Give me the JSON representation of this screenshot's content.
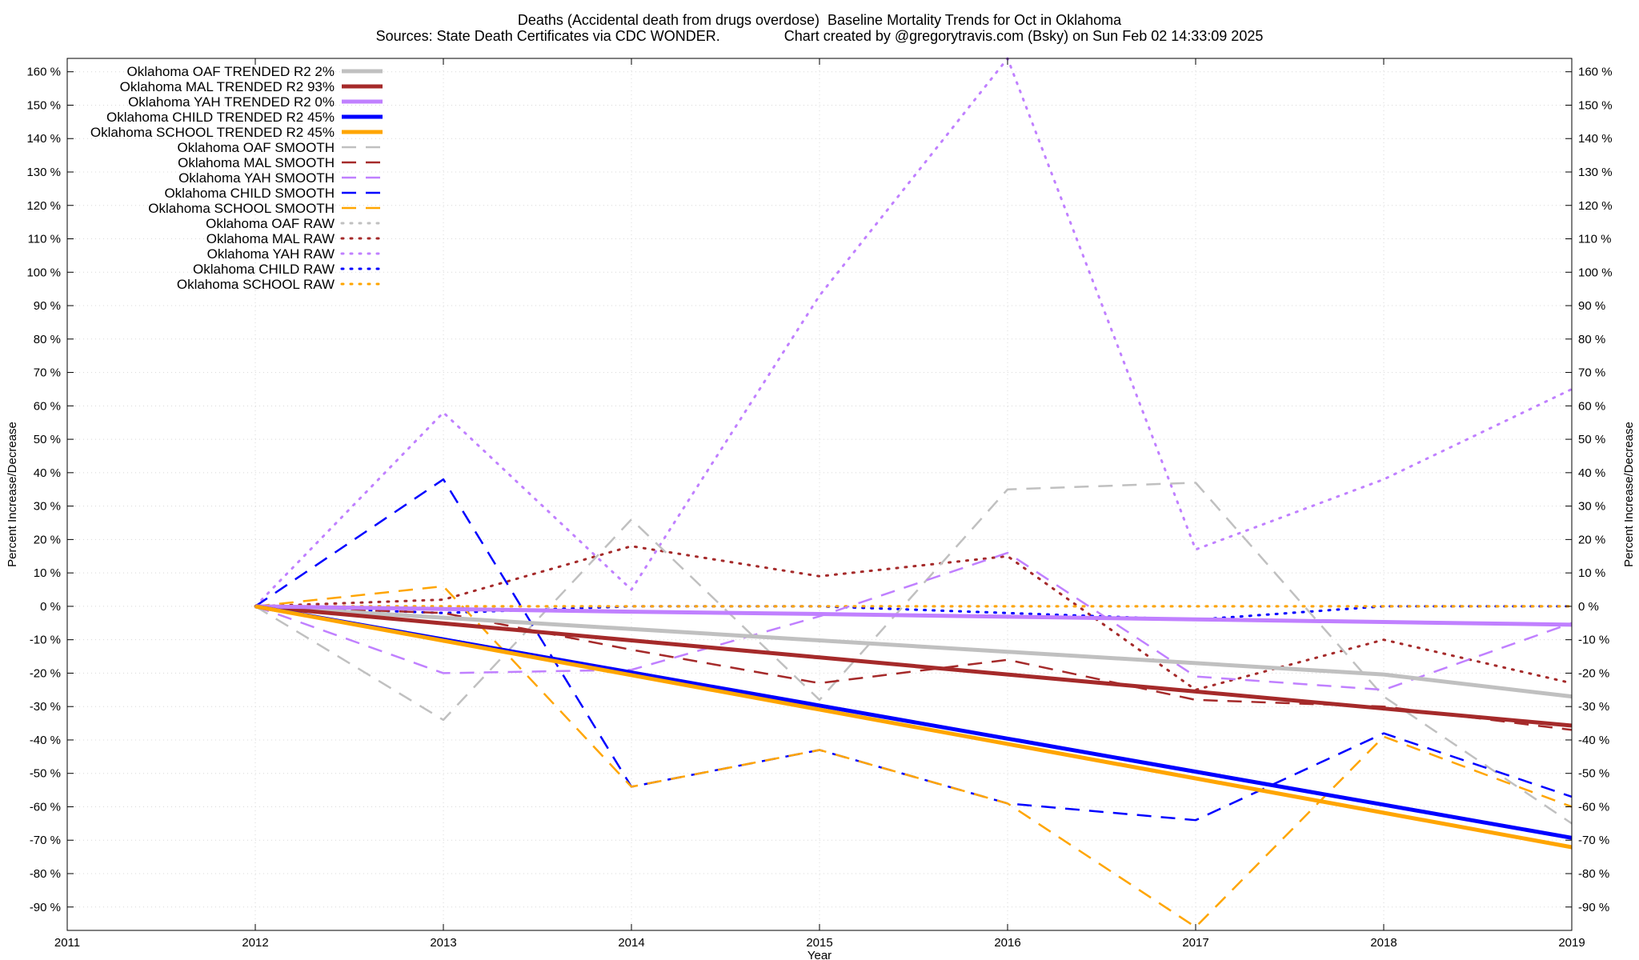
{
  "header": {
    "title": "Deaths (Accidental death from drugs overdose)  Baseline Mortality Trends for Oct in Oklahoma",
    "subtitle": "Sources: State Death Certificates via CDC WONDER.                Chart created by @gregorytravis.com (Bsky) on Sun Feb 02 14:33:09 2025"
  },
  "chart_data": {
    "type": "line",
    "title": "Deaths (Accidental death from drugs overdose)  Baseline Mortality Trends for Oct in Oklahoma",
    "xlabel": "Year",
    "ylabel": "Percent Increase/Decrease",
    "y2label": "Percent Increase/Decrease",
    "xlim": [
      2011,
      2019
    ],
    "ylim": [
      -97,
      164
    ],
    "xticks": [
      "2011",
      "2012",
      "2013",
      "2014",
      "2015",
      "2016",
      "2017",
      "2018",
      "2019"
    ],
    "yticks": [
      "160 %",
      "150 %",
      "140 %",
      "130 %",
      "120 %",
      "110 %",
      "100 %",
      "90 %",
      "80 %",
      "70 %",
      "60 %",
      "50 %",
      "40 %",
      "30 %",
      "20 %",
      "10 %",
      "0 %",
      "-10 %",
      "-20 %",
      "-30 %",
      "-40 %",
      "-50 %",
      "-60 %",
      "-70 %",
      "-80 %",
      "-90 %"
    ],
    "grid": true,
    "legend_position": "top-left",
    "x": [
      2012,
      2013,
      2014,
      2015,
      2016,
      2017,
      2018,
      2019
    ],
    "series": [
      {
        "name": "Oklahoma OAF TRENDED R2  2%",
        "style": "trend",
        "color": "#c0c0c0",
        "values": [
          0,
          -3.4,
          -6.8,
          -10.2,
          -13.6,
          -17.0,
          -20.4,
          -27.0
        ]
      },
      {
        "name": "Oklahoma MAL TRENDED R2  93%",
        "style": "trend",
        "color": "#a52a2a",
        "values": [
          0,
          -5.1,
          -10.2,
          -15.3,
          -20.4,
          -25.5,
          -30.6,
          -35.7
        ]
      },
      {
        "name": "Oklahoma YAH TRENDED R2  0%",
        "style": "trend",
        "color": "#c080ff",
        "values": [
          0,
          -0.8,
          -1.6,
          -2.3,
          -3.1,
          -3.9,
          -4.7,
          -5.5
        ]
      },
      {
        "name": "Oklahoma CHILD TRENDED R2  45%",
        "style": "trend",
        "color": "#0000ff",
        "values": [
          0,
          -9.9,
          -19.8,
          -29.7,
          -39.6,
          -49.5,
          -59.4,
          -69.3
        ]
      },
      {
        "name": "Oklahoma SCHOOL TRENDED R2  45%",
        "style": "trend",
        "color": "#ffa500",
        "values": [
          0,
          -10.3,
          -20.6,
          -30.9,
          -41.2,
          -51.5,
          -61.8,
          -72.1
        ]
      },
      {
        "name": "Oklahoma OAF SMOOTH",
        "style": "smooth",
        "color": "#c0c0c0",
        "values": [
          0,
          -34,
          26,
          -28,
          35,
          37,
          -27,
          -65
        ]
      },
      {
        "name": "Oklahoma MAL SMOOTH",
        "style": "smooth",
        "color": "#a52a2a",
        "values": [
          0,
          -2,
          -13,
          -23,
          -16,
          -28,
          -30,
          -37
        ]
      },
      {
        "name": "Oklahoma YAH SMOOTH",
        "style": "smooth",
        "color": "#c080ff",
        "values": [
          0,
          -20,
          -19,
          -3,
          16,
          -21,
          -25,
          -5
        ]
      },
      {
        "name": "Oklahoma CHILD SMOOTH",
        "style": "smooth",
        "color": "#0000ff",
        "values": [
          0,
          38,
          -54,
          -43,
          -59,
          -64,
          -38,
          -57
        ]
      },
      {
        "name": "Oklahoma SCHOOL SMOOTH",
        "style": "smooth",
        "color": "#ffa500",
        "values": [
          0,
          6,
          -54,
          -43,
          -59,
          -96,
          -39,
          -60
        ]
      },
      {
        "name": "Oklahoma OAF RAW",
        "style": "raw",
        "color": "#c0c0c0",
        "values": [
          0,
          0,
          0,
          0,
          0,
          0,
          0,
          0
        ]
      },
      {
        "name": "Oklahoma MAL RAW",
        "style": "raw",
        "color": "#a52a2a",
        "values": [
          0,
          2,
          18,
          9,
          15,
          -25,
          -10,
          -23
        ]
      },
      {
        "name": "Oklahoma YAH RAW",
        "style": "raw",
        "color": "#c080ff",
        "values": [
          0,
          58,
          5,
          93,
          164,
          17,
          38,
          65
        ]
      },
      {
        "name": "Oklahoma CHILD RAW",
        "style": "raw",
        "color": "#0000ff",
        "values": [
          0,
          -2,
          0,
          0,
          -2,
          -4,
          0,
          0
        ]
      },
      {
        "name": "Oklahoma SCHOOL RAW",
        "style": "raw",
        "color": "#ffa500",
        "values": [
          0,
          0,
          0,
          0,
          0,
          0,
          0,
          0
        ]
      }
    ]
  }
}
